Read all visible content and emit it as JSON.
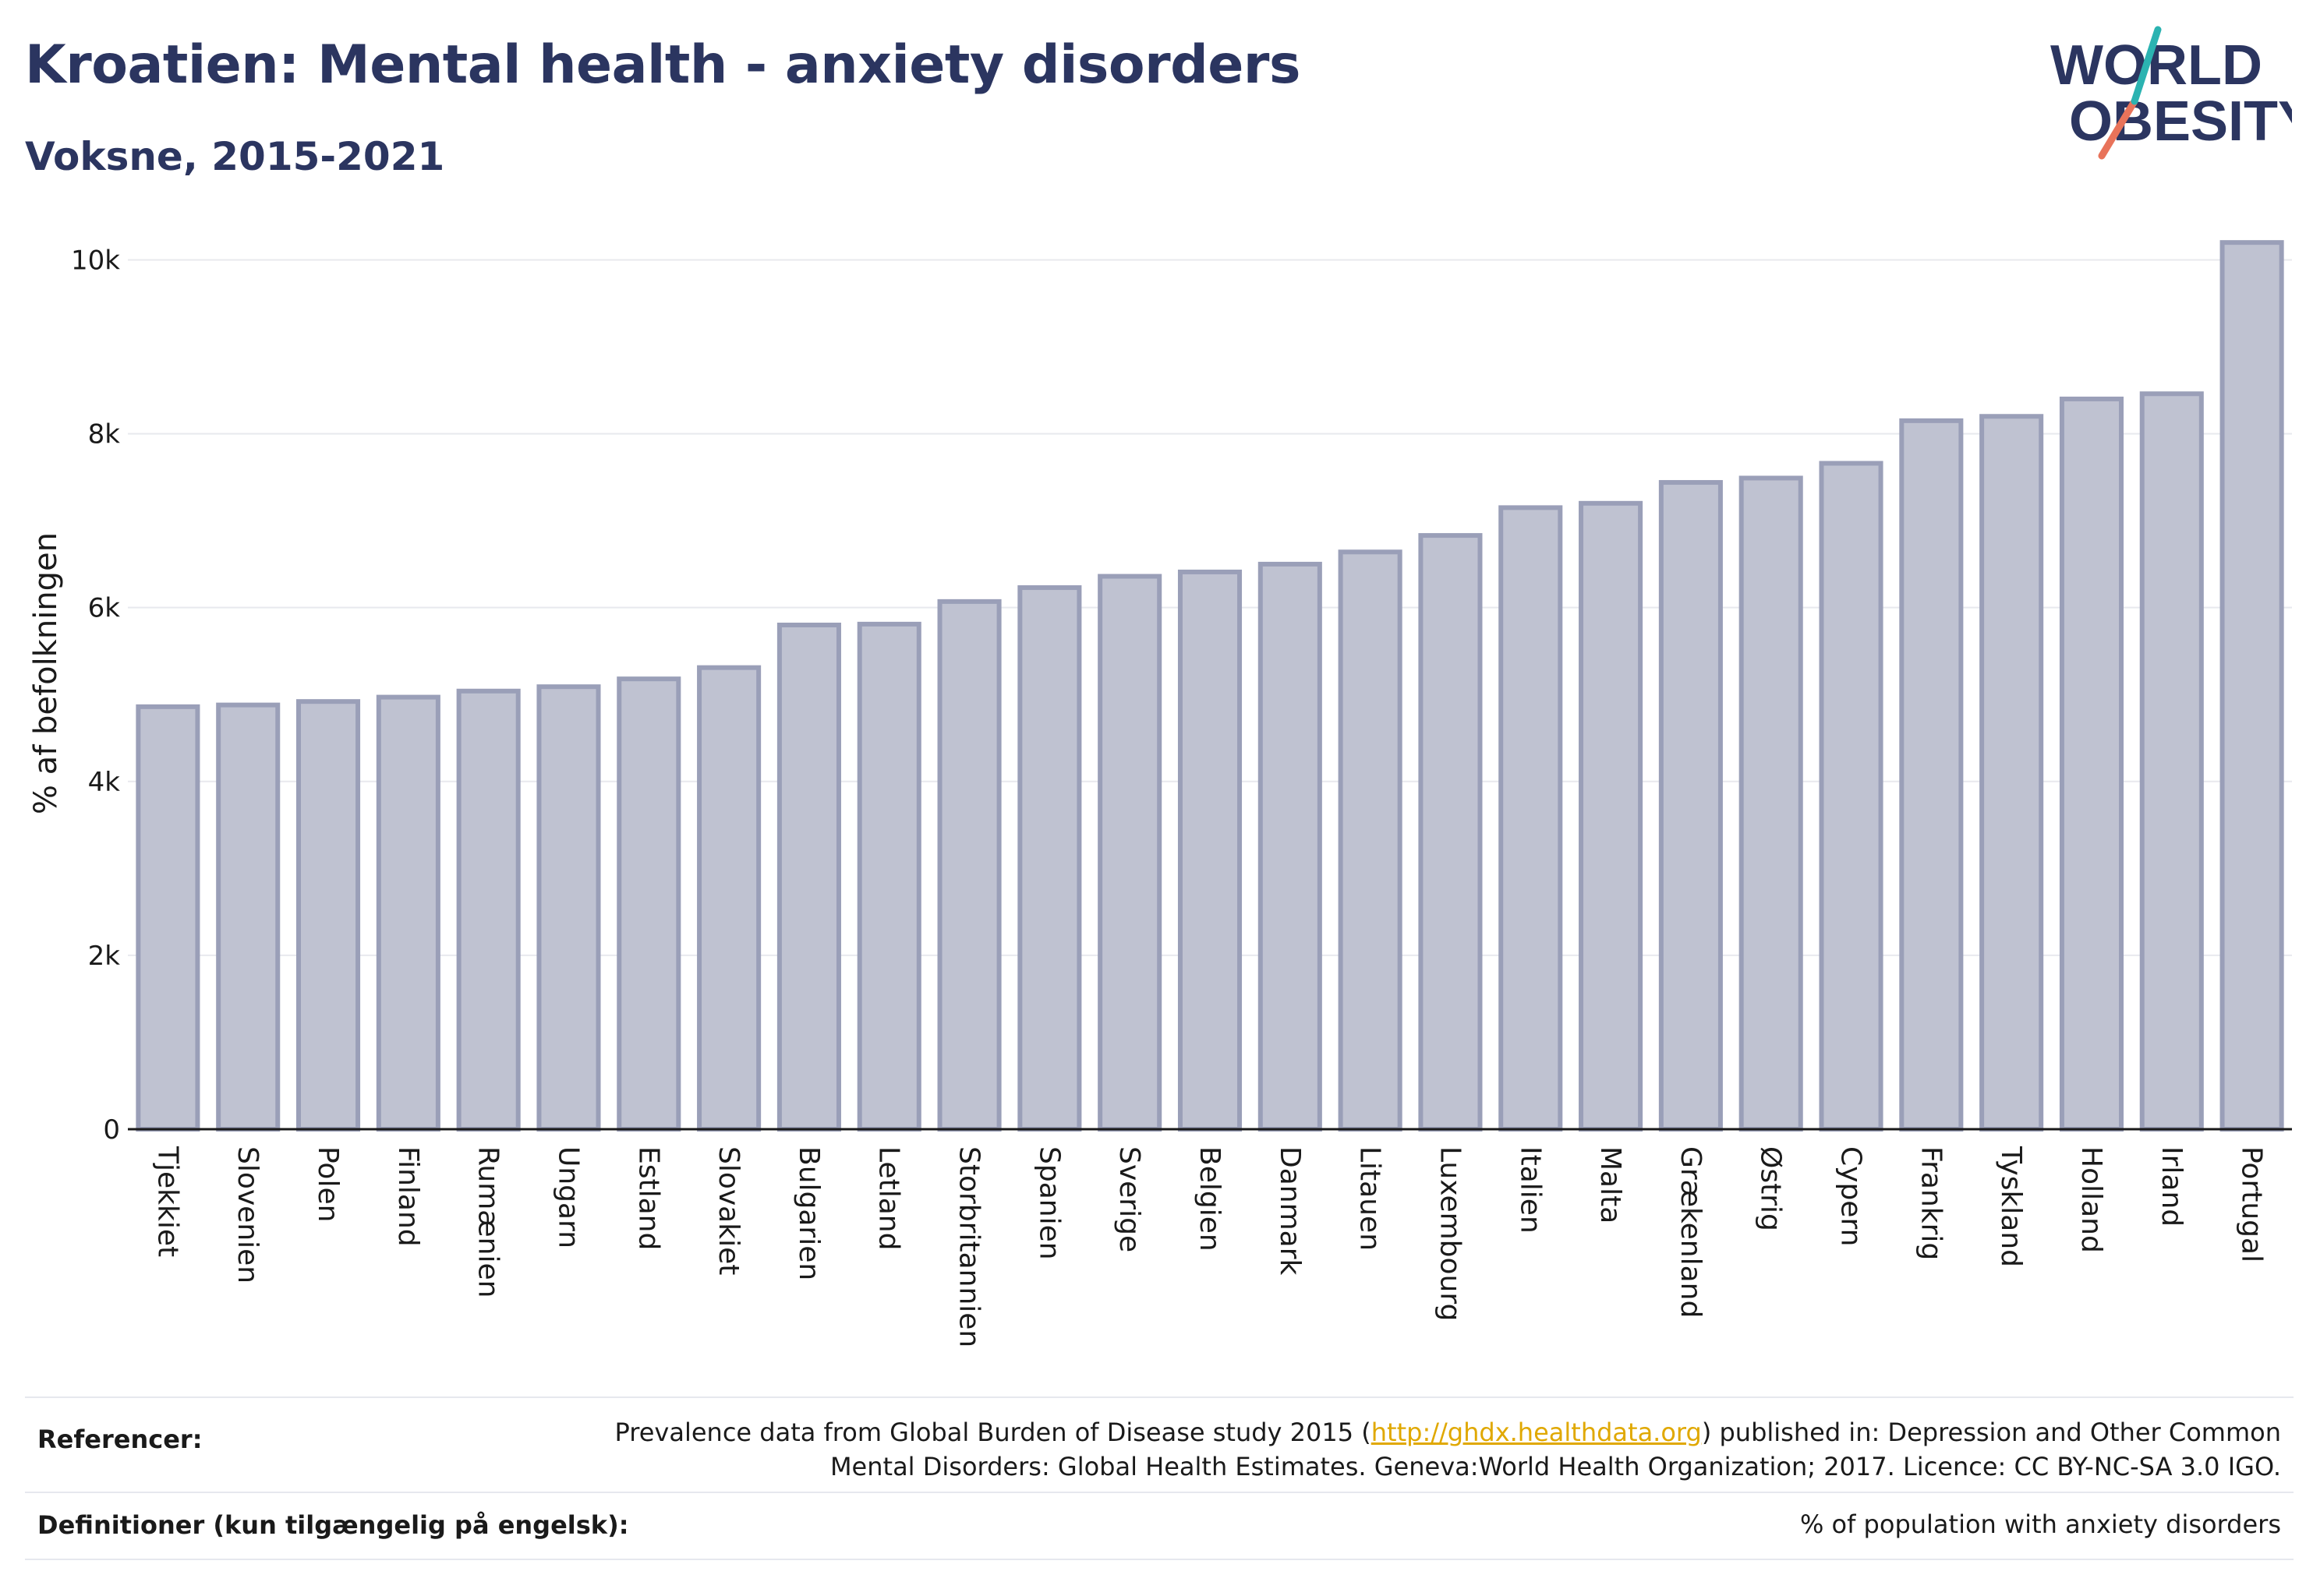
{
  "header": {
    "title": "Kroatien: Mental health - anxiety disorders",
    "subtitle": "Voksne, 2015-2021"
  },
  "logo": {
    "line1": "WORLD",
    "line2": "OBESITY"
  },
  "colors": {
    "bar_fill": "#bfc2d1",
    "bar_stroke": "#9a9fb8",
    "text": "#2b3560",
    "accent_teal": "#2bb3b1",
    "accent_coral": "#e8735a"
  },
  "chart_data": {
    "type": "bar",
    "ylabel": "% af befolkningen",
    "ylim": [
      0,
      10300
    ],
    "yticks": [
      0,
      2000,
      4000,
      6000,
      8000,
      10000
    ],
    "ytick_labels": [
      "0",
      "2k",
      "4k",
      "6k",
      "8k",
      "10k"
    ],
    "grid": true,
    "categories": [
      "Tjekkiet",
      "Slovenien",
      "Polen",
      "Finland",
      "Rumænien",
      "Ungarn",
      "Estland",
      "Slovakiet",
      "Bulgarien",
      "Letland",
      "Storbritannien",
      "Spanien",
      "Sverige",
      "Belgien",
      "Danmark",
      "Litauen",
      "Luxembourg",
      "Italien",
      "Malta",
      "Grækenland",
      "Østrig",
      "Cypern",
      "Frankrig",
      "Tyskland",
      "Holland",
      "Irland",
      "Portugal"
    ],
    "values": [
      4860,
      4880,
      4920,
      4970,
      5040,
      5090,
      5180,
      5310,
      5800,
      5810,
      6070,
      6230,
      6360,
      6410,
      6500,
      6640,
      6830,
      7150,
      7200,
      7440,
      7490,
      7660,
      8150,
      8200,
      8400,
      8460,
      10200
    ]
  },
  "footer": {
    "references_label": "Referencer:",
    "references_pre": "Prevalence data from Global Burden of Disease study 2015 (",
    "references_link": "http://ghdx.healthdata.org",
    "references_post": ") published in: Depression and Other Common",
    "references_line2": "Mental Disorders: Global Health Estimates. Geneva:World Health Organization; 2017. Licence: CC BY-NC-SA 3.0 IGO.",
    "definitions_label": "Definitioner (kun tilgængelig på engelsk):",
    "definitions_value": "% of population with anxiety disorders"
  }
}
